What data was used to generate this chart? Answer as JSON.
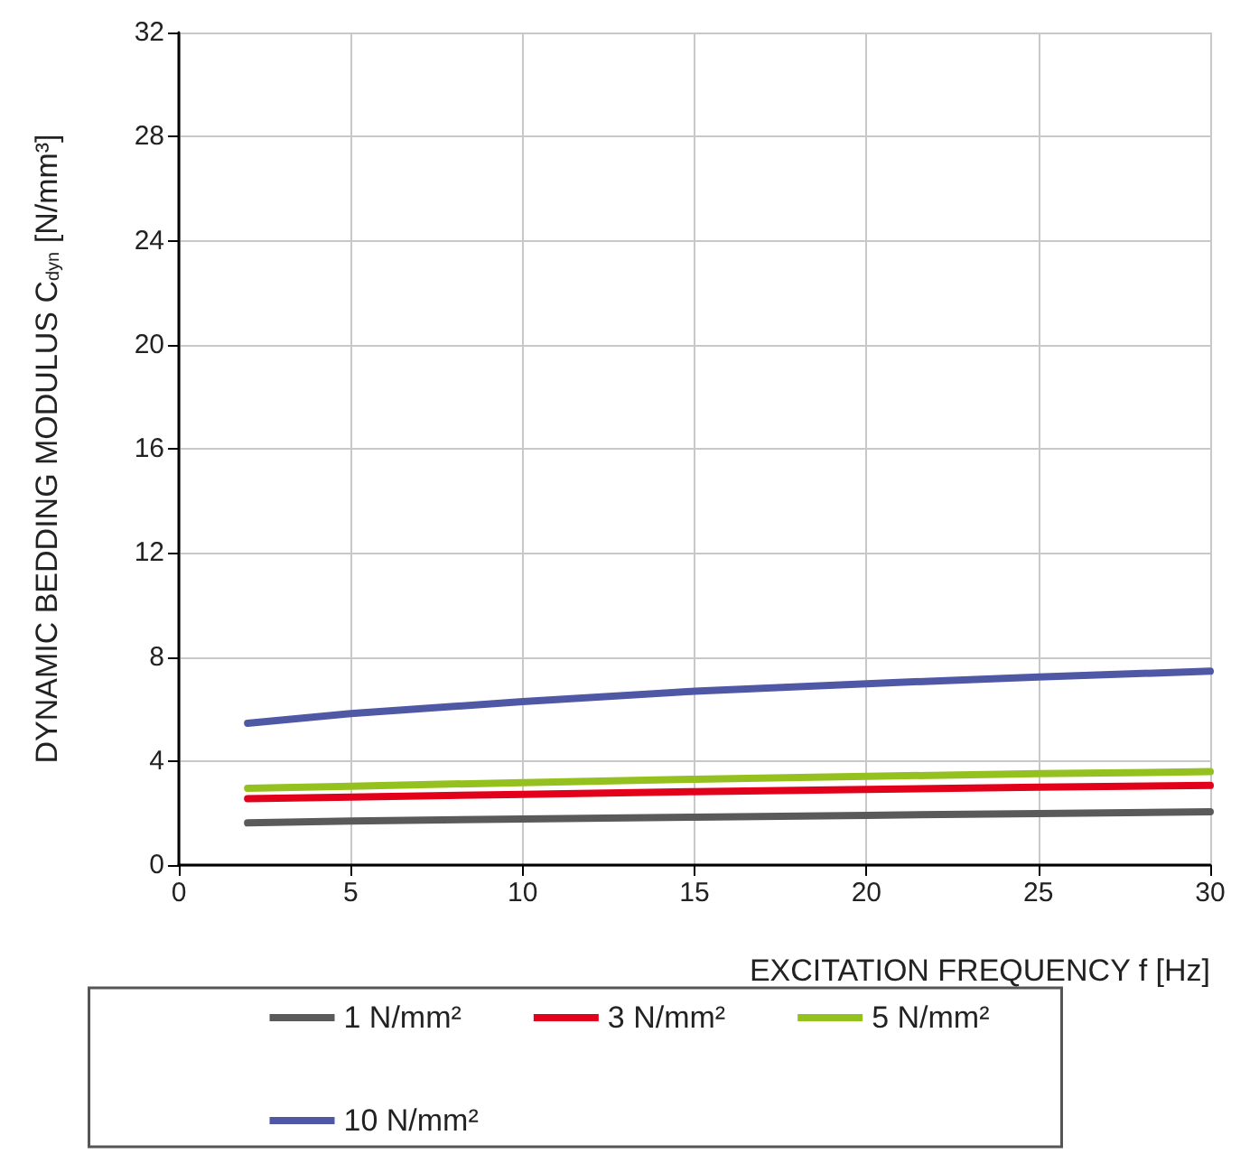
{
  "chart_data": {
    "type": "line",
    "xlabel": "EXCITATION FREQUENCY f [Hz]",
    "ylabel": "DYNAMIC BEDDING MODULUS C$_{dyn}$ [N/mm³]",
    "x": [
      2,
      5,
      10,
      15,
      20,
      25,
      30
    ],
    "xlim": [
      0,
      30
    ],
    "xticks": [
      0,
      5,
      10,
      15,
      20,
      25,
      30
    ],
    "ylim": [
      0,
      32
    ],
    "yticks": [
      0,
      4,
      8,
      12,
      16,
      20,
      24,
      28,
      32
    ],
    "grid": true,
    "legend": "bottom",
    "marker": "none",
    "line_style": "solid",
    "series": [
      {
        "name": "1 N/mm²",
        "color": "#5a5a5a",
        "values": [
          1.62,
          1.69,
          1.77,
          1.84,
          1.91,
          1.98,
          2.05
        ]
      },
      {
        "name": "3 N/mm²",
        "color": "#e3001b",
        "values": [
          2.55,
          2.61,
          2.72,
          2.82,
          2.91,
          2.99,
          3.06
        ]
      },
      {
        "name": "5 N/mm²",
        "color": "#95c11f",
        "values": [
          2.95,
          3.03,
          3.17,
          3.3,
          3.41,
          3.51,
          3.59
        ]
      },
      {
        "name": "10 N/mm²",
        "color": "#4f58a5",
        "values": [
          5.45,
          5.82,
          6.28,
          6.68,
          6.97,
          7.23,
          7.45
        ]
      }
    ]
  }
}
